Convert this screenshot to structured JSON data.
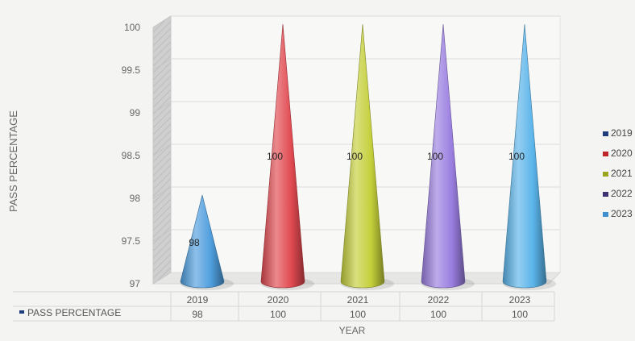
{
  "chart_data": {
    "type": "bar",
    "shape": "cone-3d",
    "xlabel": "YEAR",
    "ylabel": "PASS PERCENTAGE",
    "ylim": [
      97,
      100
    ],
    "yticks": [
      "97",
      "97.5",
      "98",
      "98.5",
      "99",
      "99.5",
      "100"
    ],
    "categories": [
      "2019",
      "2020",
      "2021",
      "2022",
      "2023"
    ],
    "values": [
      98,
      100,
      100,
      100,
      100
    ],
    "data_labels": [
      "98",
      "100",
      "100",
      "100",
      "100"
    ],
    "point_colors": [
      "#4f9ede",
      "#e04950",
      "#c4cf3a",
      "#9a7ee0",
      "#5ab4ea"
    ],
    "legend": {
      "position": "right",
      "entries": [
        "2019",
        "2020",
        "2021",
        "2022",
        "2023"
      ],
      "swatch_colors": [
        "#1f3d7a",
        "#c0242b",
        "#9aa61c",
        "#3a3570",
        "#3d8fd0"
      ]
    },
    "data_table": {
      "row_label": "PASS PERCENTAGE",
      "values": [
        "98",
        "100",
        "100",
        "100",
        "100"
      ]
    },
    "grid": true
  }
}
